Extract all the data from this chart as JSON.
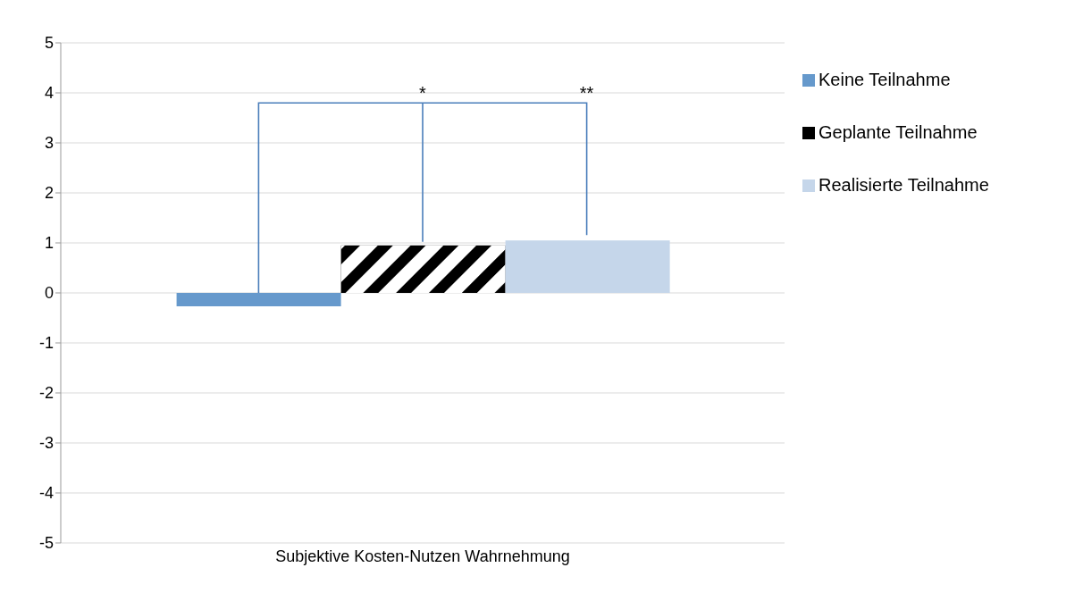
{
  "chart_data": {
    "type": "bar",
    "categories": [
      "Subjektive Kosten-Nutzen Wahrnehmung"
    ],
    "series": [
      {
        "name": "Keine Teilnahme",
        "color": "#6699cc",
        "values": [
          -0.27
        ]
      },
      {
        "name": "Geplante Teilnahme",
        "color": "#000000",
        "values": [
          0.95
        ]
      },
      {
        "name": "Realisierte Teilnahme",
        "color": "#c5d6ea",
        "values": [
          1.05
        ]
      }
    ],
    "ylim": [
      -5,
      5
    ],
    "yticks": [
      -5,
      -4,
      -3,
      -2,
      -1,
      0,
      1,
      2,
      3,
      4,
      5
    ],
    "grid": "y",
    "legend": "right",
    "annotations": [
      "*",
      "**"
    ]
  }
}
